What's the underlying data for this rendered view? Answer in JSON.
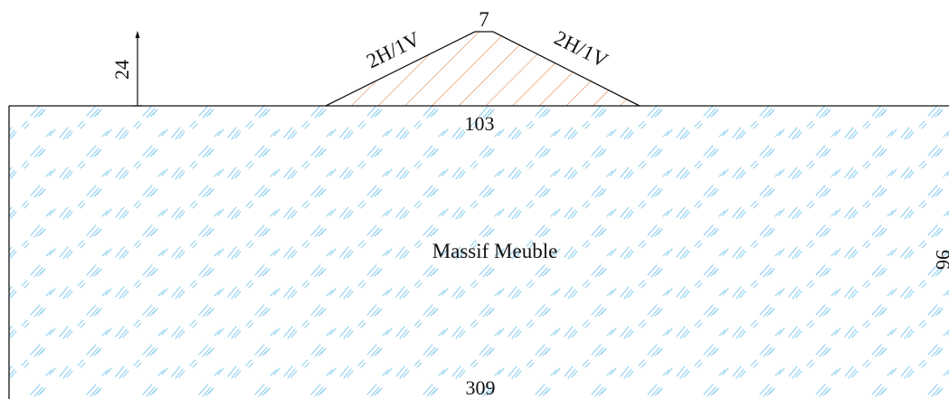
{
  "diagram": {
    "crest_width": "7",
    "left_slope": "2H/1V",
    "right_slope": "2H/1V",
    "embankment_height": "24",
    "base_width": "103",
    "foundation_label": "Massif Meuble",
    "foundation_depth": "96",
    "foundation_width": "309"
  },
  "colors": {
    "outline": "#111111",
    "soil_hatch": "#8fd0f0",
    "embankment_hatch": "#e07a3c"
  }
}
